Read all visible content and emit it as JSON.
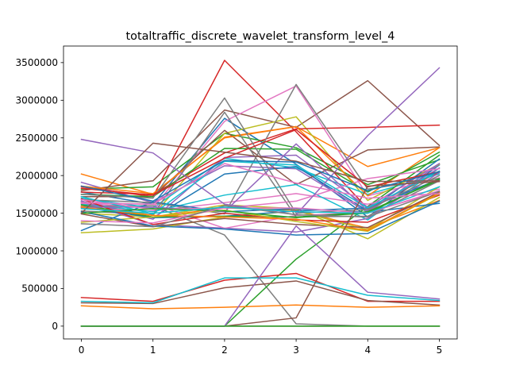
{
  "chart_data": {
    "type": "line",
    "title": "totaltraffic_discrete_wavelet_transform_level_4",
    "xlabel": "",
    "ylabel": "",
    "x": [
      0,
      1,
      2,
      3,
      4,
      5
    ],
    "xlim": [
      -0.25,
      5.25
    ],
    "ylim": [
      -170000,
      3720000
    ],
    "x_ticks": [
      0,
      1,
      2,
      3,
      4,
      5
    ],
    "x_tick_labels": [
      "0",
      "1",
      "2",
      "3",
      "4",
      "5"
    ],
    "y_ticks": [
      0,
      500000,
      1000000,
      1500000,
      2000000,
      2500000,
      3000000,
      3500000
    ],
    "y_tick_labels": [
      "0",
      "500000",
      "1000000",
      "1500000",
      "2000000",
      "2500000",
      "3000000",
      "3500000"
    ],
    "grid": false,
    "legend": "none",
    "series": [
      {
        "color": "#1f77b4",
        "values": [
          1780000,
          1620000,
          2760000,
          2150000,
          1450000,
          2140000
        ]
      },
      {
        "color": "#ff7f0e",
        "values": [
          2020000,
          1750000,
          2510000,
          2650000,
          2120000,
          2370000
        ]
      },
      {
        "color": "#2ca02c",
        "values": [
          1820000,
          1850000,
          2560000,
          2370000,
          1880000,
          2210000
        ]
      },
      {
        "color": "#d62728",
        "values": [
          1850000,
          1720000,
          3530000,
          2580000,
          1560000,
          2050000
        ]
      },
      {
        "color": "#9467bd",
        "values": [
          1910000,
          1640000,
          2130000,
          2090000,
          1510000,
          2150000
        ]
      },
      {
        "color": "#8c564b",
        "values": [
          1800000,
          1930000,
          2870000,
          2640000,
          3260000,
          2400000
        ]
      },
      {
        "color": "#e377c2",
        "values": [
          1630000,
          1570000,
          2720000,
          3190000,
          1730000,
          1970000
        ]
      },
      {
        "color": "#7f7f7f",
        "values": [
          1590000,
          1600000,
          1210000,
          30000,
          0,
          0
        ]
      },
      {
        "color": "#bcbd22",
        "values": [
          1640000,
          1470000,
          2560000,
          2780000,
          1670000,
          2150000
        ]
      },
      {
        "color": "#17becf",
        "values": [
          1700000,
          1570000,
          2230000,
          2100000,
          1750000,
          2020000
        ]
      },
      {
        "color": "#1f77b4",
        "values": [
          1660000,
          1440000,
          2020000,
          2120000,
          1530000,
          2220000
        ]
      },
      {
        "color": "#ff7f0e",
        "values": [
          1590000,
          1450000,
          1570000,
          1540000,
          1300000,
          1670000
        ]
      },
      {
        "color": "#2ca02c",
        "values": [
          0,
          0,
          0,
          890000,
          1590000,
          2270000
        ]
      },
      {
        "color": "#d62728",
        "values": [
          1780000,
          1750000,
          2300000,
          2620000,
          2640000,
          2670000
        ]
      },
      {
        "color": "#9467bd",
        "values": [
          1660000,
          1420000,
          2240000,
          2270000,
          1580000,
          2160000
        ]
      },
      {
        "color": "#8c564b",
        "values": [
          1720000,
          1720000,
          2600000,
          1880000,
          2340000,
          2380000
        ]
      },
      {
        "color": "#e377c2",
        "values": [
          1570000,
          1530000,
          1640000,
          1760000,
          1620000,
          1820000
        ]
      },
      {
        "color": "#7f7f7f",
        "values": [
          1680000,
          1640000,
          1490000,
          3210000,
          1820000,
          1960000
        ]
      },
      {
        "color": "#bcbd22",
        "values": [
          1500000,
          1450000,
          1610000,
          1560000,
          1160000,
          1710000
        ]
      },
      {
        "color": "#17becf",
        "values": [
          1620000,
          1520000,
          1740000,
          1880000,
          1410000,
          2100000
        ]
      },
      {
        "color": "#1f77b4",
        "values": [
          1270000,
          1650000,
          1520000,
          1560000,
          1510000,
          1630000
        ]
      },
      {
        "color": "#ff7f0e",
        "values": [
          1860000,
          1760000,
          2500000,
          2650000,
          1730000,
          2370000
        ]
      },
      {
        "color": "#2ca02c",
        "values": [
          1750000,
          1720000,
          2360000,
          2350000,
          1780000,
          2310000
        ]
      },
      {
        "color": "#d62728",
        "values": [
          380000,
          330000,
          610000,
          700000,
          330000,
          330000
        ]
      },
      {
        "color": "#9467bd",
        "values": [
          1650000,
          1350000,
          1300000,
          1250000,
          1430000,
          2040000
        ]
      },
      {
        "color": "#8c564b",
        "values": [
          310000,
          300000,
          510000,
          600000,
          340000,
          280000
        ]
      },
      {
        "color": "#e377c2",
        "values": [
          1630000,
          1620000,
          1300000,
          1470000,
          1510000,
          1780000
        ]
      },
      {
        "color": "#7f7f7f",
        "values": [
          1530000,
          1480000,
          2840000,
          1450000,
          1460000,
          1930000
        ]
      },
      {
        "color": "#bcbd22",
        "values": [
          1240000,
          1290000,
          1450000,
          1530000,
          1280000,
          1850000
        ]
      },
      {
        "color": "#17becf",
        "values": [
          330000,
          310000,
          640000,
          640000,
          410000,
          340000
        ]
      },
      {
        "color": "#1f77b4",
        "values": [
          1580000,
          1440000,
          1460000,
          1530000,
          1570000,
          1950000
        ]
      },
      {
        "color": "#ff7f0e",
        "values": [
          270000,
          230000,
          250000,
          280000,
          250000,
          270000
        ]
      },
      {
        "color": "#2ca02c",
        "values": [
          1610000,
          1450000,
          1460000,
          1450000,
          1500000,
          1960000
        ]
      },
      {
        "color": "#d62728",
        "values": [
          1690000,
          1350000,
          1500000,
          1410000,
          1380000,
          1740000
        ]
      },
      {
        "color": "#9467bd",
        "values": [
          1580000,
          1580000,
          1520000,
          2420000,
          1530000,
          2100000
        ]
      },
      {
        "color": "#8c564b",
        "values": [
          1490000,
          1320000,
          1430000,
          1350000,
          1310000,
          1780000
        ]
      },
      {
        "color": "#e377c2",
        "values": [
          1680000,
          1550000,
          1570000,
          1660000,
          1960000,
          2090000
        ]
      },
      {
        "color": "#7f7f7f",
        "values": [
          1750000,
          1700000,
          3030000,
          1500000,
          1550000,
          2000000
        ]
      },
      {
        "color": "#bcbd22",
        "values": [
          1380000,
          1450000,
          1540000,
          1390000,
          1260000,
          1760000
        ]
      },
      {
        "color": "#17becf",
        "values": [
          1720000,
          1490000,
          2190000,
          2140000,
          1570000,
          2060000
        ]
      },
      {
        "color": "#1f77b4",
        "values": [
          1520000,
          1330000,
          1290000,
          1210000,
          1230000,
          1660000
        ]
      },
      {
        "color": "#ff7f0e",
        "values": [
          1580000,
          1470000,
          1450000,
          1420000,
          1270000,
          1770000
        ]
      },
      {
        "color": "#2ca02c",
        "values": [
          1500000,
          1560000,
          1530000,
          1440000,
          1520000,
          1940000
        ]
      },
      {
        "color": "#d62728",
        "values": [
          1830000,
          1740000,
          2230000,
          2610000,
          1850000,
          2050000
        ]
      },
      {
        "color": "#9467bd",
        "values": [
          2480000,
          2300000,
          1620000,
          1480000,
          2530000,
          3430000
        ]
      },
      {
        "color": "#8c564b",
        "values": [
          1500000,
          2430000,
          2310000,
          2190000,
          1920000,
          1930000
        ]
      },
      {
        "color": "#e377c2",
        "values": [
          1400000,
          1370000,
          1570000,
          1570000,
          1500000,
          1800000
        ]
      },
      {
        "color": "#7f7f7f",
        "values": [
          1360000,
          1320000,
          1600000,
          1480000,
          1450000,
          1790000
        ]
      },
      {
        "color": "#bcbd22",
        "values": [
          0,
          0,
          0,
          0,
          0,
          0
        ]
      },
      {
        "color": "#17becf",
        "values": [
          1560000,
          1500000,
          1580000,
          1520000,
          1500000,
          1850000
        ]
      },
      {
        "color": "#8c564b",
        "values": [
          0,
          0,
          0,
          110000,
          1860000,
          1920000
        ]
      },
      {
        "color": "#9467bd",
        "values": [
          0,
          0,
          0,
          1330000,
          450000,
          360000
        ]
      },
      {
        "color": "#7f7f7f",
        "values": [
          0,
          0,
          0,
          0,
          0,
          0
        ]
      },
      {
        "color": "#2ca02c",
        "values": [
          0,
          0,
          0,
          0,
          0,
          0
        ]
      },
      {
        "color": "#1f77b4",
        "values": [
          1860000,
          1660000,
          2200000,
          2180000,
          1800000,
          2050000
        ]
      },
      {
        "color": "#e377c2",
        "values": [
          1640000,
          1620000,
          2160000,
          1900000,
          1700000,
          1760000
        ]
      }
    ]
  }
}
